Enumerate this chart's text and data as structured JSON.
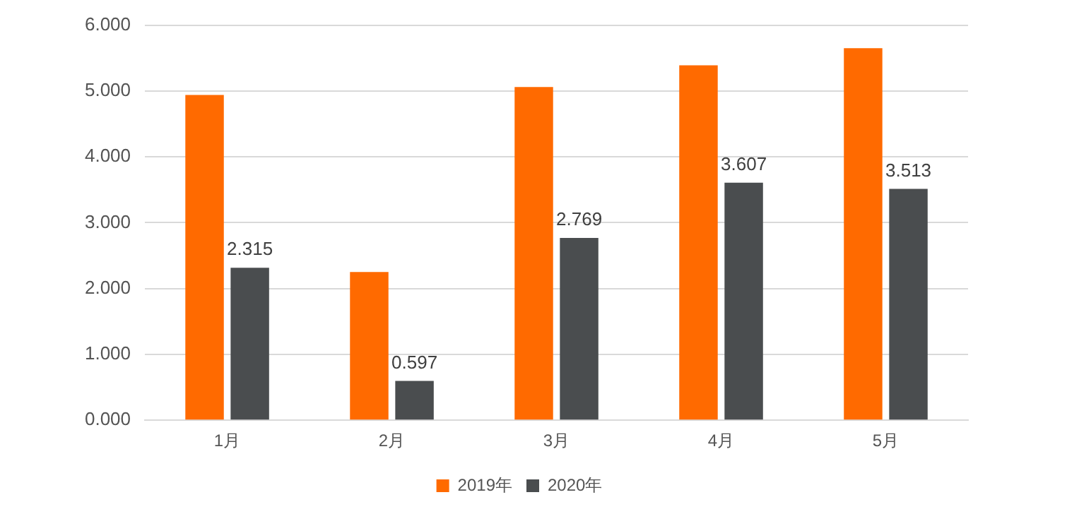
{
  "chart_data": {
    "type": "bar",
    "categories": [
      "1月",
      "2月",
      "3月",
      "4月",
      "5月"
    ],
    "series": [
      {
        "name": "2019年",
        "color": "#ff6a00",
        "values": [
          4.94,
          2.25,
          5.06,
          5.39,
          5.65
        ]
      },
      {
        "name": "2020年",
        "color": "#4a4d4f",
        "values": [
          2.315,
          0.597,
          2.769,
          3.607,
          3.513
        ],
        "value_labels": [
          "2.315",
          "0.597",
          "2.769",
          "3.607",
          "3.513"
        ]
      }
    ],
    "ylim": [
      0,
      6
    ],
    "yticks": [
      {
        "value": 0,
        "label": "0.000"
      },
      {
        "value": 1,
        "label": "1.000"
      },
      {
        "value": 2,
        "label": "2.000"
      },
      {
        "value": 3,
        "label": "3.000"
      },
      {
        "value": 4,
        "label": "4.000"
      },
      {
        "value": 5,
        "label": "5.000"
      },
      {
        "value": 6,
        "label": "6.000"
      }
    ],
    "grid": "y",
    "legend": "bottom"
  }
}
